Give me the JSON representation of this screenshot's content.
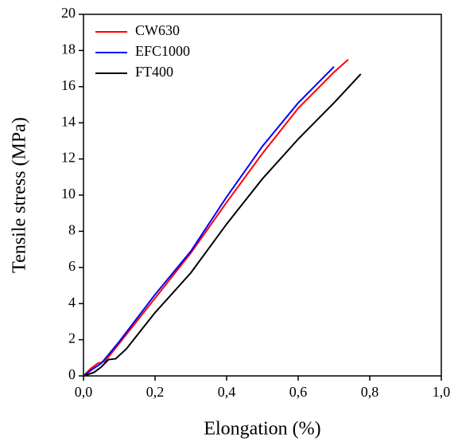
{
  "chart_data": {
    "type": "line",
    "xlabel": "Elongation (%)",
    "ylabel": "Tensile stress (MPa)",
    "xlim": [
      0,
      1
    ],
    "ylim": [
      0,
      20
    ],
    "xticks": [
      {
        "value": 0,
        "label": "0,0"
      },
      {
        "value": 0.2,
        "label": "0,2"
      },
      {
        "value": 0.4,
        "label": "0,4"
      },
      {
        "value": 0.6,
        "label": "0,6"
      },
      {
        "value": 0.8,
        "label": "0,8"
      },
      {
        "value": 1,
        "label": "1,0"
      }
    ],
    "yticks": [
      0,
      2,
      4,
      6,
      8,
      10,
      12,
      14,
      16,
      18,
      20
    ],
    "legend": "upper left",
    "series": [
      {
        "name": "CW630",
        "color": "#ff0000",
        "x": [
          0,
          0.02,
          0.04,
          0.06,
          0.1,
          0.2,
          0.3,
          0.4,
          0.5,
          0.6,
          0.7,
          0.74
        ],
        "values": [
          0,
          0.4,
          0.7,
          0.8,
          1.8,
          4.3,
          6.8,
          9.6,
          12.3,
          14.8,
          16.8,
          17.5
        ]
      },
      {
        "name": "EFC1000",
        "color": "#0000ff",
        "x": [
          0,
          0.02,
          0.05,
          0.1,
          0.2,
          0.3,
          0.4,
          0.5,
          0.6,
          0.7
        ],
        "values": [
          0,
          0.3,
          0.7,
          1.9,
          4.5,
          6.9,
          9.9,
          12.7,
          15.1,
          17.1
        ]
      },
      {
        "name": "FT400",
        "color": "#000000",
        "x": [
          0,
          0.03,
          0.05,
          0.07,
          0.09,
          0.12,
          0.2,
          0.3,
          0.4,
          0.5,
          0.6,
          0.7,
          0.775
        ],
        "values": [
          0,
          0.2,
          0.5,
          0.9,
          0.95,
          1.5,
          3.5,
          5.7,
          8.4,
          10.9,
          13.1,
          15.1,
          16.7
        ]
      }
    ]
  }
}
